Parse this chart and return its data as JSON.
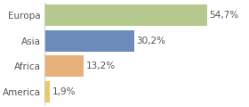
{
  "categories": [
    "Europa",
    "Asia",
    "Africa",
    "America"
  ],
  "values": [
    54.7,
    30.2,
    13.2,
    1.9
  ],
  "labels": [
    "54,7%",
    "30,2%",
    "13,2%",
    "1,9%"
  ],
  "bar_colors": [
    "#b5c98e",
    "#6b8cba",
    "#e8b07a",
    "#e8c96a"
  ],
  "background_color": "#ffffff",
  "xlim": [
    0,
    68
  ],
  "bar_height": 0.85,
  "label_fontsize": 7.5,
  "category_fontsize": 7.5,
  "label_color": "#555555",
  "category_color": "#555555",
  "axvline_color": "#cccccc"
}
